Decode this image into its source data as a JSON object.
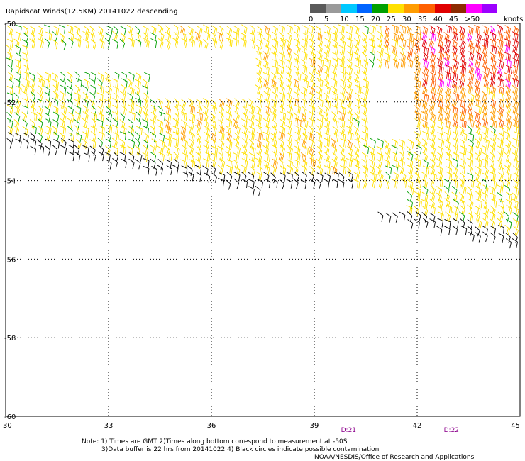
{
  "header": {
    "title": "Rapidscat Winds(12.5KM) 20141022 descending"
  },
  "legend": {
    "units": "knots",
    "ticks": [
      "0",
      "5",
      "10",
      "15",
      "20",
      "25",
      "30",
      "35",
      "40",
      "45",
      ">50"
    ],
    "colors": [
      "#5a5a5a",
      "#9a9a9a",
      "#00c8ff",
      "#0064ff",
      "#00a000",
      "#ffe000",
      "#ff9c00",
      "#ff6000",
      "#e00000",
      "#8c2a00",
      "#ff00ff",
      "#9c00ff"
    ],
    "color_names": [
      "dark-gray",
      "light-gray",
      "cyan",
      "blue",
      "green",
      "yellow",
      "orange",
      "dark-orange",
      "red",
      "brown",
      "magenta",
      "purple"
    ]
  },
  "map": {
    "lon_ticks": [
      "30",
      "33",
      "36",
      "39",
      "42",
      "45"
    ],
    "lat_ticks": [
      "-50",
      "-52",
      "-54",
      "-56",
      "-58",
      "-60"
    ],
    "lon_range": [
      30,
      45
    ],
    "lat_range": [
      -60,
      -50
    ],
    "grid": true,
    "time_marks": [
      {
        "label": "D:21",
        "lon": 40.0
      },
      {
        "label": "D:22",
        "lon": 43.0
      }
    ]
  },
  "notes": {
    "line1": "Note: 1) Times are GMT 2)Times along bottom correspond to measurement at -50S",
    "line2": "3)Data buffer is 22 hrs from 20141022 4) Black circles indicate possible contamination",
    "credit": "NOAA/NESDIS/Office of Research and Applications"
  }
}
